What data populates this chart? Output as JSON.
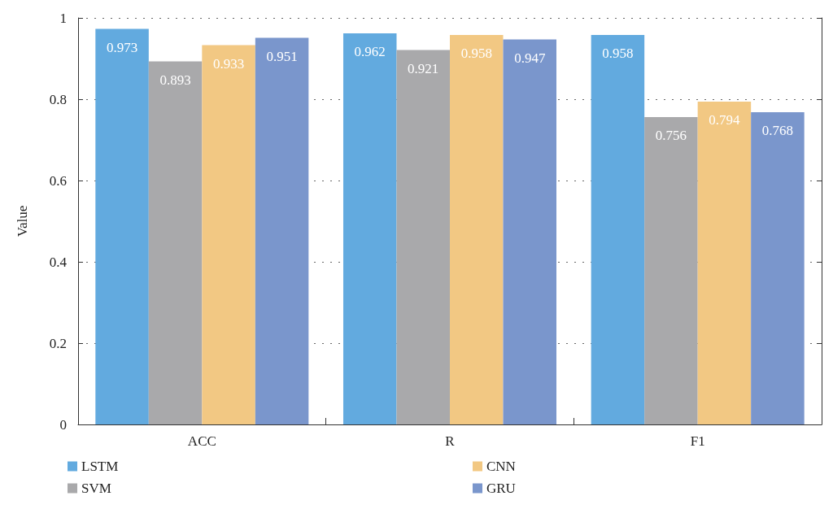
{
  "chart_data": {
    "type": "bar",
    "ylabel": "Value",
    "categories": [
      "ACC",
      "R",
      "F1"
    ],
    "series": [
      {
        "name": "LSTM",
        "color": "#62aadf",
        "values": [
          0.973,
          0.962,
          0.958
        ]
      },
      {
        "name": "SVM",
        "color": "#a9a9ab",
        "values": [
          0.893,
          0.921,
          0.756
        ]
      },
      {
        "name": "CNN",
        "color": "#f2c883",
        "values": [
          0.933,
          0.958,
          0.794
        ]
      },
      {
        "name": "GRU",
        "color": "#7a96cc",
        "values": [
          0.951,
          0.947,
          0.768
        ]
      }
    ],
    "ylim": [
      0,
      1
    ],
    "yticks": [
      0,
      0.2,
      0.4,
      0.6,
      0.8,
      1
    ],
    "grid": "y",
    "legend": "bottom",
    "data_labels": true
  }
}
